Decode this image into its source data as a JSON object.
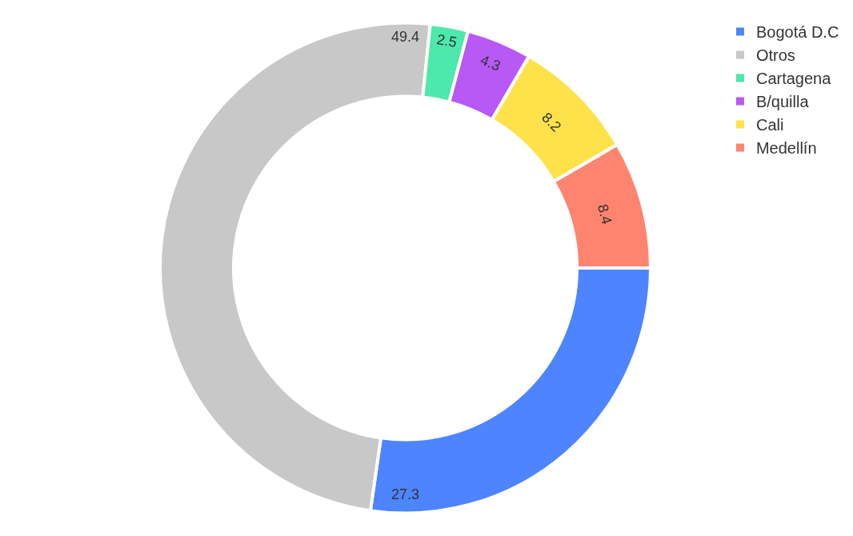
{
  "chart_data": {
    "type": "donut",
    "categories": [
      "Bogotá D.C",
      "Otros",
      "Cartagena",
      "B/quilla",
      "Cali",
      "Medellín"
    ],
    "values": [
      27.3,
      49.4,
      2.5,
      4.3,
      8.2,
      8.4
    ],
    "colors": [
      "#4d84ff",
      "#c8c8c8",
      "#4de8ab",
      "#b858f5",
      "#ffe24a",
      "#ff8470"
    ],
    "data_labels": true,
    "legend": "top right"
  }
}
